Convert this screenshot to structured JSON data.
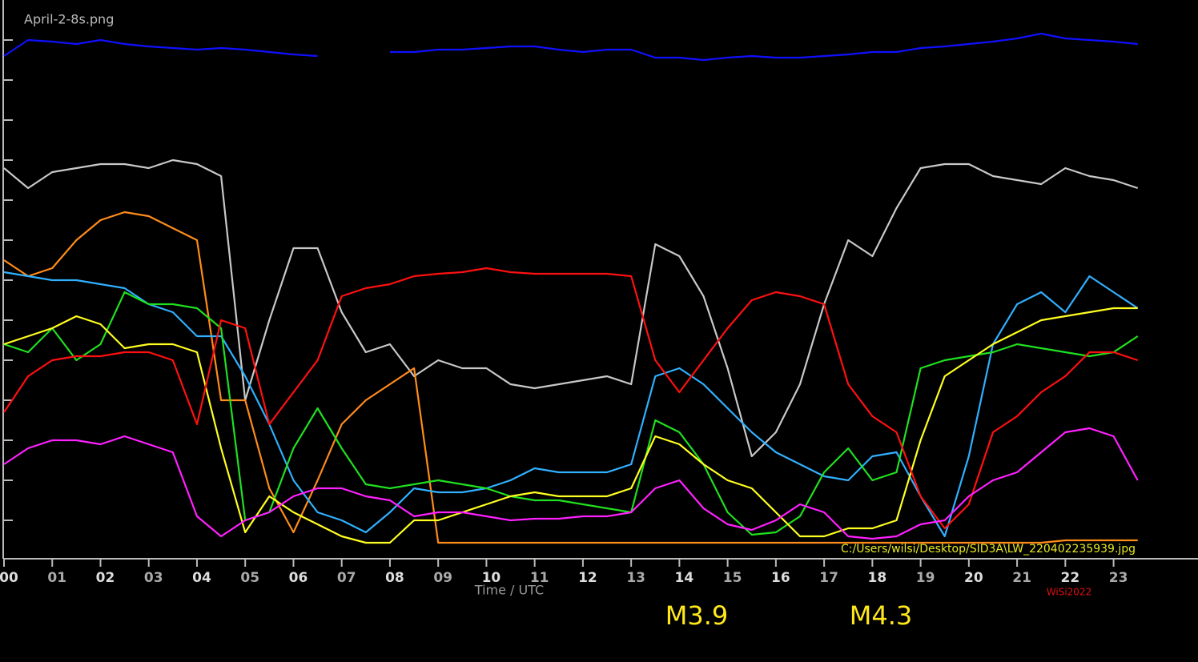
{
  "chart_data": {
    "type": "line",
    "title": "April-2-8s.png",
    "xlabel": "Time / UTC",
    "source": "C:/Users/wilsi/Desktop/SID3A\\LW_220402235939.jpg",
    "credit": "WiSi2022",
    "annotations": [
      "M3.9",
      "M4.3"
    ],
    "xlim": [
      0,
      24.75
    ],
    "ylim": [
      0,
      14
    ],
    "yticks": [
      1,
      2,
      3,
      4,
      5,
      6,
      7,
      8,
      9,
      10,
      11,
      12,
      13
    ],
    "xticks": [
      {
        "value": 0,
        "label": "00"
      },
      {
        "value": 1,
        "label": "01"
      },
      {
        "value": 2,
        "label": "02"
      },
      {
        "value": 3,
        "label": "03"
      },
      {
        "value": 4,
        "label": "04"
      },
      {
        "value": 5,
        "label": "05"
      },
      {
        "value": 6,
        "label": "06"
      },
      {
        "value": 7,
        "label": "07"
      },
      {
        "value": 8,
        "label": "08"
      },
      {
        "value": 9,
        "label": "09"
      },
      {
        "value": 10,
        "label": "10"
      },
      {
        "value": 11,
        "label": "11"
      },
      {
        "value": 12,
        "label": "12"
      },
      {
        "value": 13,
        "label": "13"
      },
      {
        "value": 14,
        "label": "14"
      },
      {
        "value": 15,
        "label": "15"
      },
      {
        "value": 16,
        "label": "16"
      },
      {
        "value": 17,
        "label": "17"
      },
      {
        "value": 18,
        "label": "18"
      },
      {
        "value": 19,
        "label": "19"
      },
      {
        "value": 20,
        "label": "20"
      },
      {
        "value": 21,
        "label": "21"
      },
      {
        "value": 22,
        "label": "22"
      },
      {
        "value": 23,
        "label": "23"
      }
    ],
    "x": [
      0,
      0.5,
      1,
      1.5,
      2,
      2.5,
      3,
      3.5,
      4,
      4.5,
      5,
      5.5,
      6,
      6.5,
      7,
      7.5,
      8,
      8.5,
      9,
      9.5,
      10,
      10.5,
      11,
      11.5,
      12,
      12.5,
      13,
      13.5,
      14,
      14.5,
      15,
      15.5,
      16,
      16.5,
      17,
      17.5,
      18,
      18.5,
      19,
      19.5,
      20,
      20.5,
      21,
      21.5,
      22,
      22.5,
      23,
      23.5
    ],
    "series": [
      {
        "color": "#1010ff",
        "values": [
          12.6,
          13,
          12.96,
          12.9,
          13,
          12.9,
          12.84,
          12.8,
          12.76,
          12.8,
          12.76,
          12.7,
          12.64,
          12.6,
          null,
          null,
          12.7,
          12.7,
          12.76,
          12.76,
          12.8,
          12.84,
          12.84,
          12.76,
          12.7,
          12.76,
          12.76,
          12.56,
          12.56,
          12.5,
          12.56,
          12.6,
          12.56,
          12.56,
          12.6,
          12.64,
          12.7,
          12.7,
          12.8,
          12.84,
          12.9,
          12.96,
          13.04,
          13.16,
          13.04,
          13,
          12.96,
          12.9
        ]
      },
      {
        "color": "#c8c8c8",
        "values": [
          9.8,
          9.3,
          9.7,
          9.8,
          9.9,
          9.9,
          9.8,
          10,
          9.9,
          9.6,
          4,
          6,
          7.8,
          7.8,
          6.2,
          5.2,
          5.4,
          4.6,
          5,
          4.8,
          4.8,
          4.4,
          4.3,
          4.4,
          4.5,
          4.6,
          4.4,
          7.9,
          7.6,
          6.6,
          4.8,
          2.6,
          3.2,
          4.4,
          6.4,
          8,
          7.6,
          8.8,
          9.8,
          9.9,
          9.9,
          9.6,
          9.5,
          9.4,
          9.8,
          9.6,
          9.5,
          9.3
        ]
      },
      {
        "color": "#ff8c1a",
        "values": [
          7.5,
          7.1,
          7.3,
          8,
          8.5,
          8.7,
          8.6,
          8.3,
          8,
          4,
          4,
          1.8,
          0.7,
          2,
          3.4,
          4,
          4.4,
          4.8,
          0.44,
          0.44,
          0.44,
          0.44,
          0.44,
          0.44,
          0.44,
          0.44,
          0.44,
          0.44,
          0.44,
          0.44,
          0.44,
          0.44,
          0.44,
          0.44,
          0.44,
          0.44,
          0.44,
          0.44,
          0.44,
          0.44,
          0.44,
          0.44,
          0.44,
          0.44,
          0.5,
          0.5,
          0.5,
          0.5
        ]
      },
      {
        "color": "#30b0ff",
        "values": [
          7.2,
          7.1,
          7,
          7,
          6.9,
          6.8,
          6.4,
          6.2,
          5.6,
          5.6,
          4.6,
          3.4,
          2,
          1.2,
          1,
          0.7,
          1.2,
          1.8,
          1.7,
          1.7,
          1.8,
          2,
          2.3,
          2.2,
          2.2,
          2.2,
          2.4,
          4.6,
          4.8,
          4.4,
          3.8,
          3.2,
          2.7,
          2.4,
          2.1,
          2,
          2.6,
          2.7,
          1.6,
          0.6,
          2.6,
          5.4,
          6.4,
          6.7,
          6.2,
          7.1,
          6.7,
          6.3
        ]
      },
      {
        "color": "#20e020",
        "values": [
          5.4,
          5.2,
          5.8,
          5,
          5.4,
          6.7,
          6.4,
          6.4,
          6.3,
          5.8,
          1,
          1.2,
          2.8,
          3.8,
          2.8,
          1.9,
          1.8,
          1.9,
          2,
          1.9,
          1.8,
          1.6,
          1.5,
          1.5,
          1.4,
          1.3,
          1.2,
          3.5,
          3.2,
          2.4,
          1.2,
          0.64,
          0.7,
          1.1,
          2.2,
          2.8,
          2,
          2.2,
          4.8,
          5,
          5.1,
          5.2,
          5.4,
          5.3,
          5.2,
          5.1,
          5.2,
          5.6
        ]
      },
      {
        "color": "#ffff20",
        "values": [
          5.4,
          5.6,
          5.8,
          6.1,
          5.9,
          5.3,
          5.4,
          5.4,
          5.2,
          2.8,
          0.7,
          1.6,
          1.2,
          0.9,
          0.6,
          0.44,
          0.44,
          1,
          1,
          1.2,
          1.4,
          1.6,
          1.7,
          1.6,
          1.6,
          1.6,
          1.8,
          3.1,
          2.9,
          2.4,
          2,
          1.8,
          1.2,
          0.6,
          0.6,
          0.8,
          0.8,
          1,
          3,
          4.6,
          5,
          5.4,
          5.7,
          6,
          6.1,
          6.2,
          6.3,
          6.3
        ]
      },
      {
        "color": "#ff1010",
        "values": [
          3.7,
          4.6,
          5,
          5.1,
          5.1,
          5.2,
          5.2,
          5,
          3.4,
          6,
          5.8,
          3.4,
          4.2,
          5,
          6.6,
          6.8,
          6.9,
          7.1,
          7.16,
          7.2,
          7.3,
          7.2,
          7.16,
          7.16,
          7.16,
          7.16,
          7.1,
          5,
          4.2,
          5,
          5.8,
          6.5,
          6.7,
          6.6,
          6.4,
          4.4,
          3.6,
          3.2,
          1.6,
          0.8,
          1.4,
          3.2,
          3.6,
          4.2,
          4.6,
          5.2,
          5.2,
          5
        ]
      },
      {
        "color": "#ff20ff",
        "values": [
          2.4,
          2.8,
          3,
          3,
          2.9,
          3.1,
          2.9,
          2.7,
          1.1,
          0.6,
          1,
          1.2,
          1.6,
          1.8,
          1.8,
          1.6,
          1.5,
          1.1,
          1.2,
          1.2,
          1.1,
          1,
          1.04,
          1.04,
          1.1,
          1.1,
          1.2,
          1.8,
          2,
          1.3,
          0.9,
          0.76,
          1,
          1.4,
          1.2,
          0.6,
          0.54,
          0.6,
          0.9,
          1,
          1.6,
          2,
          2.2,
          2.7,
          3.2,
          3.3,
          3.1,
          2
        ]
      }
    ]
  }
}
